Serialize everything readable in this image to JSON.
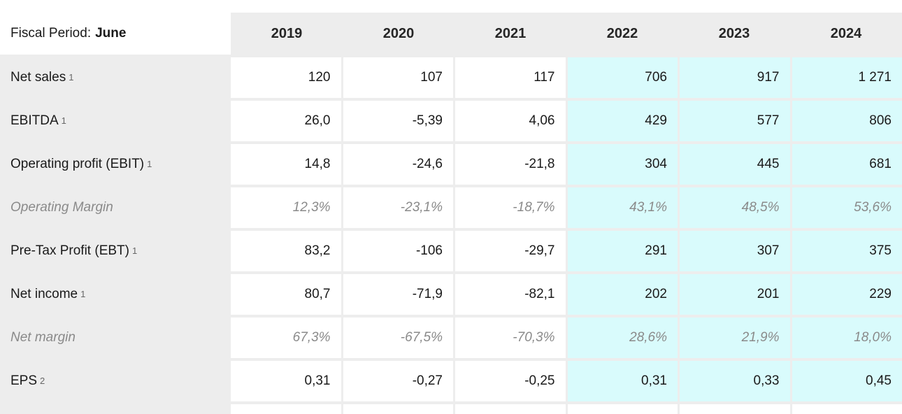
{
  "chart_data": {
    "type": "table",
    "header": {
      "label": "Fiscal Period:",
      "value": "June"
    },
    "columns": [
      "2019",
      "2020",
      "2021",
      "2022",
      "2023",
      "2024"
    ],
    "highlighted_columns": [
      "2022",
      "2023",
      "2024"
    ],
    "rows": [
      {
        "label": "Net sales",
        "footnote": "1",
        "emphasis": "normal",
        "values": [
          "120",
          "107",
          "117",
          "706",
          "917",
          "1 271"
        ]
      },
      {
        "label": "EBITDA",
        "footnote": "1",
        "emphasis": "normal",
        "values": [
          "26,0",
          "-5,39",
          "4,06",
          "429",
          "577",
          "806"
        ]
      },
      {
        "label": "Operating profit (EBIT)",
        "footnote": "1",
        "emphasis": "normal",
        "values": [
          "14,8",
          "-24,6",
          "-21,8",
          "304",
          "445",
          "681"
        ]
      },
      {
        "label": "Operating Margin",
        "footnote": "",
        "emphasis": "italic",
        "values": [
          "12,3%",
          "-23,1%",
          "-18,7%",
          "43,1%",
          "48,5%",
          "53,6%"
        ]
      },
      {
        "label": "Pre-Tax Profit (EBT)",
        "footnote": "1",
        "emphasis": "normal",
        "values": [
          "83,2",
          "-106",
          "-29,7",
          "291",
          "307",
          "375"
        ]
      },
      {
        "label": "Net income",
        "footnote": "1",
        "emphasis": "normal",
        "values": [
          "80,7",
          "-71,9",
          "-82,1",
          "202",
          "201",
          "229"
        ]
      },
      {
        "label": "Net margin",
        "footnote": "",
        "emphasis": "italic",
        "values": [
          "67,3%",
          "-67,5%",
          "-70,3%",
          "28,6%",
          "21,9%",
          "18,0%"
        ]
      },
      {
        "label": "EPS",
        "footnote": "2",
        "emphasis": "normal",
        "values": [
          "0,31",
          "-0,27",
          "-0,25",
          "0,31",
          "0,33",
          "0,45"
        ]
      }
    ],
    "colors": {
      "highlight_bg": "#d9fbfc",
      "header_bg": "#ededed",
      "label_column_bg": "#ededed",
      "text": "#1a1a1a",
      "muted_text": "#8a8a8a",
      "footnote_text": "#666666"
    }
  }
}
